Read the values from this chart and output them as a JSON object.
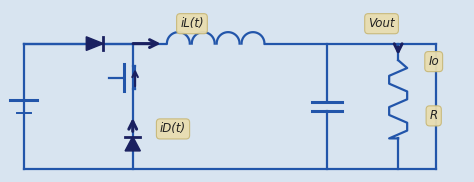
{
  "bg_color": "#d8e4f0",
  "line_color": "#2255aa",
  "dark_arrow_color": "#1a2060",
  "label_bg": "#e8ddb0",
  "label_border": "#c8b878",
  "figsize": [
    4.74,
    1.82
  ],
  "dpi": 100,
  "labels": {
    "iL": "iL(t)",
    "iD": "iD(t)",
    "Vout": "Vout",
    "Io": "Io",
    "R": "R"
  },
  "xlim": [
    0,
    10
  ],
  "ylim": [
    0,
    3.8
  ]
}
